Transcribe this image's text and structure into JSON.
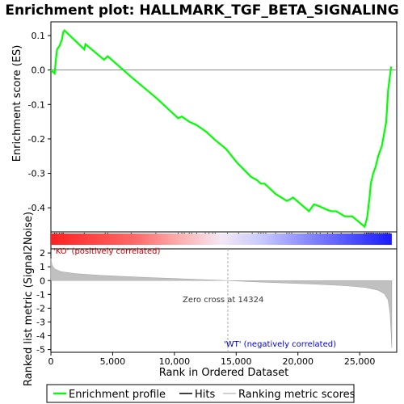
{
  "chart_data": {
    "type": "line",
    "title": "Enrichment plot: HALLMARK_TGF_BETA_SIGNALING",
    "xlabel": "Rank in Ordered Dataset",
    "ylabel_top": "Enrichment score (ES)",
    "ylabel_bottom": "Ranked list metric (Signal2Noise)",
    "xlim": [
      0,
      28000
    ],
    "x_ticks": [
      0,
      5000,
      10000,
      15000,
      20000,
      25000
    ],
    "x_tick_labels": [
      "0",
      "5,000",
      "10,000",
      "15,000",
      "20,000",
      "25,000"
    ],
    "es_ylim": [
      -0.47,
      0.14
    ],
    "es_ticks": [
      0.1,
      0.0,
      -0.1,
      -0.2,
      -0.3,
      -0.4
    ],
    "es_tick_labels": [
      "0.1",
      "0.0",
      "-0.1",
      "-0.2",
      "-0.3",
      "-0.4"
    ],
    "metric_ylim": [
      -5.2,
      2.3
    ],
    "metric_ticks": [
      2,
      1,
      0,
      -1,
      -2,
      -3,
      -4,
      -5
    ],
    "metric_tick_labels": [
      "2",
      "1",
      "0",
      "-1",
      "-2",
      "-3",
      "-4",
      "-5"
    ],
    "enrichment_profile": {
      "x": [
        0,
        300,
        400,
        500,
        700,
        900,
        1000,
        1100,
        2700,
        2800,
        4300,
        4600,
        6500,
        8500,
        10300,
        10600,
        10800,
        11200,
        11800,
        12600,
        13200,
        14200,
        15100,
        16200,
        16700,
        17000,
        17300,
        18200,
        19100,
        19400,
        19600,
        20900,
        21100,
        21300,
        21700,
        22300,
        22700,
        23100,
        23800,
        24400,
        25400,
        25600,
        25700,
        25800,
        25900,
        26100,
        26300,
        26500,
        26800,
        27000,
        27150,
        27300,
        27550
      ],
      "y": [
        0.0,
        -0.01,
        0.03,
        0.06,
        0.07,
        0.09,
        0.11,
        0.115,
        0.06,
        0.075,
        0.03,
        0.04,
        -0.02,
        -0.08,
        -0.14,
        -0.135,
        -0.14,
        -0.15,
        -0.16,
        -0.18,
        -0.2,
        -0.23,
        -0.27,
        -0.31,
        -0.32,
        -0.33,
        -0.33,
        -0.36,
        -0.38,
        -0.375,
        -0.37,
        -0.41,
        -0.4,
        -0.39,
        -0.395,
        -0.405,
        -0.41,
        -0.41,
        -0.425,
        -0.425,
        -0.455,
        -0.43,
        -0.4,
        -0.37,
        -0.33,
        -0.3,
        -0.28,
        -0.25,
        -0.22,
        -0.18,
        -0.15,
        -0.06,
        0.01
      ]
    },
    "hits": [
      300,
      450,
      700,
      900,
      1000,
      2700,
      4400,
      4600,
      6500,
      8500,
      10300,
      10600,
      10800,
      11200,
      11400,
      11800,
      12500,
      12800,
      13100,
      13300,
      14300,
      15200,
      16300,
      16800,
      17000,
      17200,
      17400,
      18200,
      19100,
      19300,
      19500,
      20800,
      21000,
      21200,
      21500,
      21800,
      22400,
      22800,
      23500,
      24400,
      25400,
      25550,
      25650,
      25750,
      25850,
      25950,
      26050,
      26150,
      26300,
      26450,
      26600,
      26750,
      26900,
      27050,
      27150,
      27250,
      27400
    ],
    "metric_profile": {
      "x": [
        0,
        100,
        300,
        800,
        2000,
        4000,
        6000,
        8000,
        10000,
        12000,
        14324,
        16000,
        18000,
        20000,
        22000,
        24000,
        25500,
        26500,
        27000,
        27300,
        27450,
        27550,
        27600
      ],
      "y": [
        1.6,
        1.1,
        0.85,
        0.65,
        0.5,
        0.38,
        0.3,
        0.22,
        0.15,
        0.08,
        0.0,
        -0.07,
        -0.14,
        -0.21,
        -0.28,
        -0.38,
        -0.5,
        -0.7,
        -0.95,
        -1.4,
        -2.3,
        -3.8,
        -4.9
      ]
    },
    "zero_cross": 14324,
    "annotations": {
      "ko": "'KO' (positively correlated)",
      "wt": "'WT' (negatively correlated)",
      "zero_cross": "Zero cross at 14324"
    },
    "legend": {
      "placement": "bottom",
      "items": [
        {
          "label": "Enrichment profile",
          "color": "#00ff00"
        },
        {
          "label": "Hits",
          "color": "#000000"
        },
        {
          "label": "Ranking metric scores",
          "color": "#c0c0c0"
        }
      ]
    },
    "colors": {
      "profile": "#00ff00",
      "metric": "#c0c0c0",
      "ko_text": "#cc0000",
      "wt_text": "#0000cc",
      "bar_pos": "#ff0000",
      "bar_neg": "#0000ff"
    }
  }
}
